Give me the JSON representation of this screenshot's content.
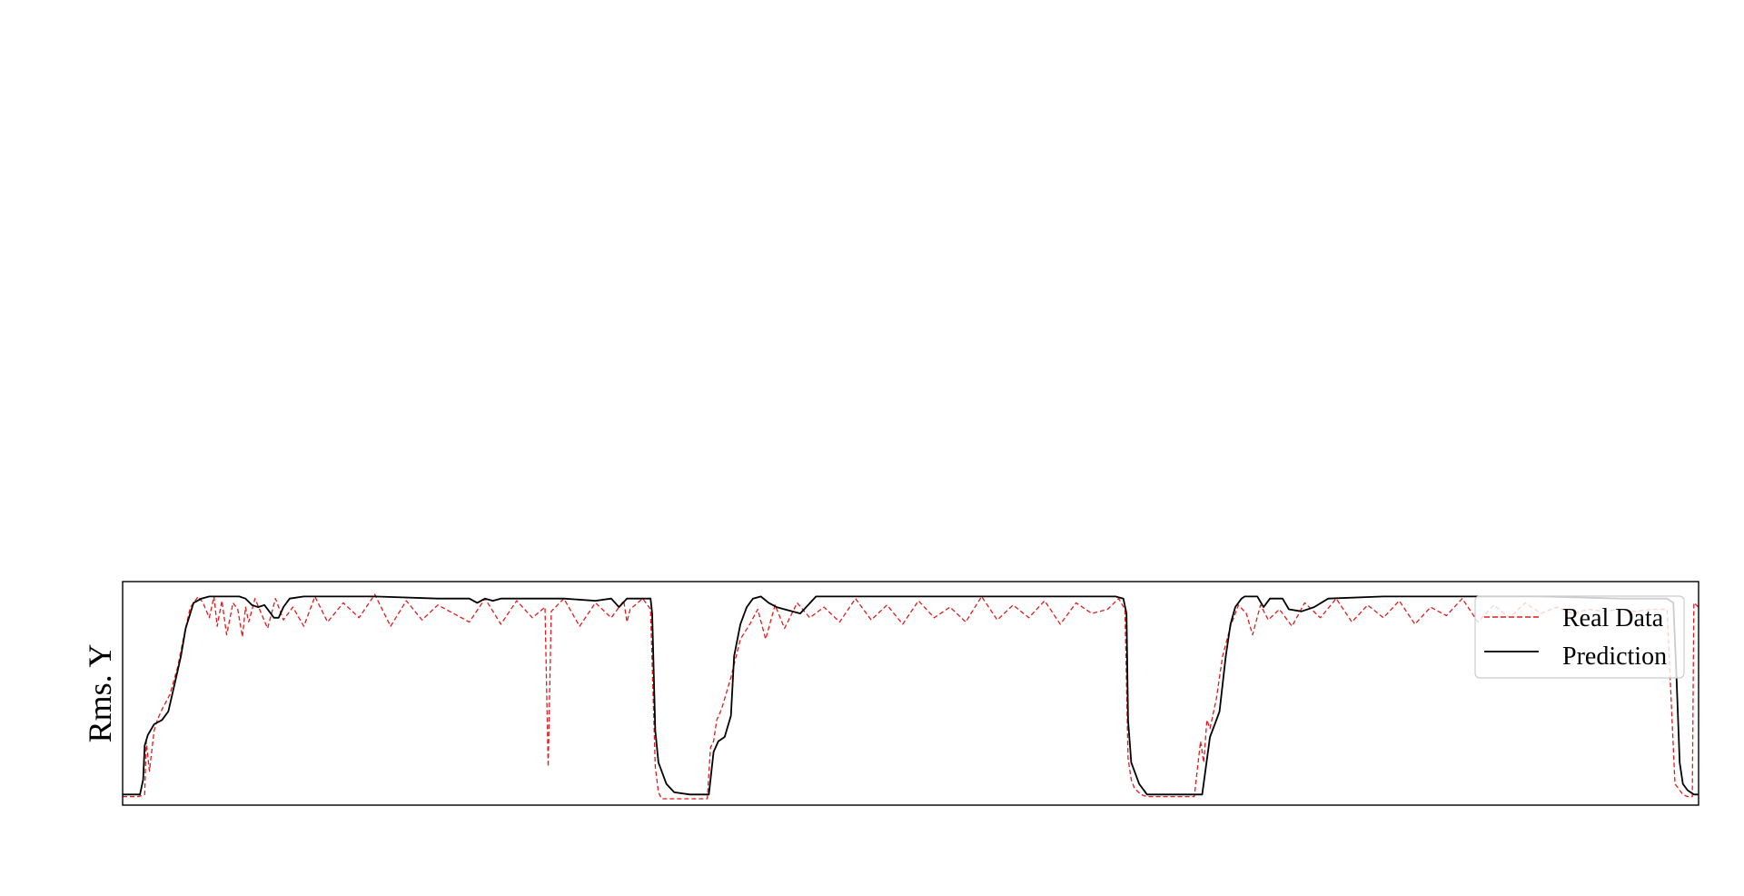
{
  "chart_data": {
    "type": "line",
    "title": "",
    "xlabel": "",
    "ylabel": "Rms. Y",
    "x_ticks_visible": false,
    "y_ticks_visible": false,
    "grid": false,
    "legend_position": "top-right",
    "x_range": [
      0,
      1000
    ],
    "ylim": [
      0,
      1.05
    ],
    "series": [
      {
        "name": "Real Data",
        "color": "#e31a1c",
        "style": "dashed",
        "x": [
          0,
          10,
          14,
          15,
          17,
          20,
          22,
          25,
          30,
          35,
          39,
          43,
          48,
          51,
          55,
          58,
          60,
          63,
          66,
          70,
          73,
          76,
          78,
          80,
          84,
          88,
          92,
          97,
          102,
          108,
          115,
          122,
          130,
          140,
          150,
          160,
          170,
          180,
          190,
          200,
          210,
          220,
          230,
          240,
          250,
          260,
          268,
          270,
          272,
          280,
          290,
          300,
          310,
          318,
          320,
          322,
          330,
          335,
          338,
          340,
          342,
          345,
          350,
          358,
          365,
          371,
          373,
          375,
          377,
          380,
          386,
          392,
          398,
          403,
          408,
          414,
          420,
          428,
          436,
          445,
          455,
          465,
          475,
          485,
          495,
          505,
          515,
          525,
          535,
          545,
          555,
          565,
          575,
          585,
          595,
          605,
          615,
          625,
          632,
          636,
          638,
          640,
          642,
          646,
          650,
          655,
          660,
          665,
          680,
          684,
          686,
          688,
          690,
          694,
          698,
          703,
          708,
          713,
          717,
          722,
          727,
          734,
          742,
          750,
          760,
          770,
          780,
          790,
          800,
          810,
          820,
          830,
          840,
          850,
          860,
          870,
          880,
          890,
          900,
          910,
          920,
          930,
          940,
          950,
          960,
          970,
          980,
          985,
          990,
          993,
          996,
          997,
          1000
        ],
        "values": [
          0.04,
          0.04,
          0.05,
          0.3,
          0.16,
          0.35,
          0.4,
          0.45,
          0.52,
          0.65,
          0.8,
          0.93,
          0.98,
          0.95,
          0.88,
          0.98,
          0.84,
          0.96,
          0.8,
          0.95,
          0.92,
          0.79,
          0.93,
          0.86,
          0.97,
          0.9,
          0.83,
          0.97,
          0.87,
          0.93,
          0.84,
          0.98,
          0.86,
          0.95,
          0.88,
          0.99,
          0.84,
          0.96,
          0.87,
          0.94,
          0.9,
          0.86,
          0.97,
          0.85,
          0.96,
          0.88,
          0.93,
          0.18,
          0.91,
          0.97,
          0.84,
          0.95,
          0.88,
          0.96,
          0.86,
          0.92,
          0.97,
          0.92,
          0.18,
          0.06,
          0.03,
          0.03,
          0.03,
          0.03,
          0.03,
          0.03,
          0.27,
          0.3,
          0.4,
          0.45,
          0.6,
          0.78,
          0.85,
          0.92,
          0.78,
          0.94,
          0.83,
          0.95,
          0.88,
          0.93,
          0.86,
          0.97,
          0.87,
          0.94,
          0.85,
          0.96,
          0.88,
          0.93,
          0.86,
          0.98,
          0.87,
          0.94,
          0.88,
          0.96,
          0.85,
          0.95,
          0.9,
          0.92,
          0.97,
          0.92,
          0.22,
          0.12,
          0.08,
          0.05,
          0.04,
          0.04,
          0.04,
          0.04,
          0.04,
          0.3,
          0.2,
          0.4,
          0.36,
          0.5,
          0.7,
          0.84,
          0.94,
          0.9,
          0.8,
          0.94,
          0.87,
          0.92,
          0.84,
          0.95,
          0.88,
          0.97,
          0.86,
          0.94,
          0.88,
          0.96,
          0.85,
          0.93,
          0.89,
          0.97,
          0.86,
          0.94,
          0.88,
          0.95,
          0.9,
          0.93,
          0.9,
          0.92,
          0.91,
          0.92,
          0.91,
          0.92,
          0.92,
          0.1,
          0.05,
          0.04,
          0.04,
          0.95,
          0.93
        ]
      },
      {
        "name": "Prediction",
        "color": "#000000",
        "style": "solid",
        "x": [
          0,
          11,
          13,
          14,
          16,
          20,
          25,
          29,
          33,
          37,
          40,
          45,
          50,
          55,
          65,
          74,
          78,
          82,
          86,
          90,
          93,
          96,
          99,
          102,
          106,
          115,
          130,
          160,
          200,
          220,
          225,
          230,
          235,
          240,
          280,
          300,
          310,
          315,
          320,
          330,
          335,
          336,
          338,
          340,
          345,
          350,
          360,
          370,
          372,
          375,
          378,
          382,
          386,
          388,
          392,
          396,
          400,
          405,
          410,
          415,
          420,
          430,
          440,
          450,
          500,
          550,
          600,
          630,
          635,
          637,
          638,
          640,
          645,
          650,
          660,
          670,
          680,
          685,
          690,
          693,
          696,
          700,
          703,
          706,
          710,
          712,
          716,
          720,
          724,
          728,
          732,
          736,
          740,
          748,
          756,
          765,
          800,
          850,
          900,
          950,
          980,
          984,
          986,
          988,
          990,
          993,
          997,
          1000
        ],
        "values": [
          0.05,
          0.05,
          0.12,
          0.28,
          0.33,
          0.38,
          0.4,
          0.44,
          0.57,
          0.7,
          0.83,
          0.95,
          0.97,
          0.98,
          0.98,
          0.98,
          0.97,
          0.94,
          0.93,
          0.94,
          0.91,
          0.88,
          0.88,
          0.93,
          0.97,
          0.98,
          0.98,
          0.98,
          0.97,
          0.97,
          0.95,
          0.97,
          0.96,
          0.97,
          0.97,
          0.96,
          0.97,
          0.93,
          0.97,
          0.97,
          0.97,
          0.9,
          0.35,
          0.2,
          0.1,
          0.06,
          0.05,
          0.05,
          0.05,
          0.25,
          0.3,
          0.32,
          0.42,
          0.7,
          0.85,
          0.93,
          0.97,
          0.98,
          0.95,
          0.93,
          0.92,
          0.9,
          0.98,
          0.98,
          0.98,
          0.98,
          0.98,
          0.98,
          0.97,
          0.9,
          0.4,
          0.2,
          0.1,
          0.05,
          0.05,
          0.05,
          0.05,
          0.05,
          0.32,
          0.38,
          0.44,
          0.7,
          0.85,
          0.93,
          0.97,
          0.98,
          0.98,
          0.98,
          0.93,
          0.97,
          0.97,
          0.97,
          0.92,
          0.91,
          0.93,
          0.97,
          0.98,
          0.98,
          0.98,
          0.97,
          0.97,
          0.95,
          0.6,
          0.2,
          0.1,
          0.07,
          0.05,
          0.05
        ]
      }
    ]
  }
}
